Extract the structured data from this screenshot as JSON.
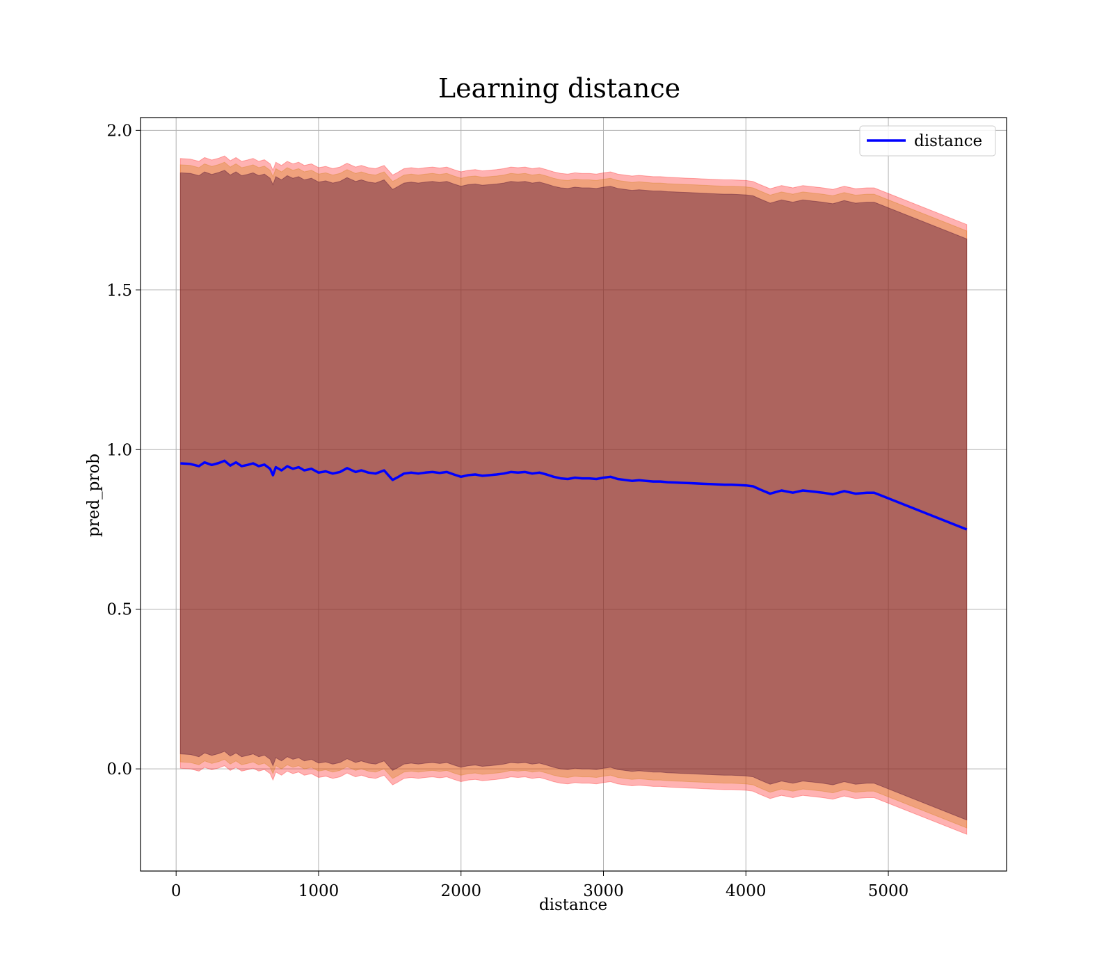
{
  "chart_data": {
    "type": "line",
    "title": "Learning distance",
    "xlabel": "distance",
    "ylabel": "pred_prob",
    "xlim": [
      -250,
      5830
    ],
    "ylim": [
      -0.32,
      2.04
    ],
    "xticks": [
      0,
      1000,
      2000,
      3000,
      4000,
      5000
    ],
    "yticks": [
      0.0,
      0.5,
      1.0,
      1.5,
      2.0
    ],
    "grid": true,
    "legend_position": "top-right",
    "line_color": "#0000ff",
    "series": [
      {
        "name": "distance",
        "x": [
          30,
          100,
          160,
          200,
          250,
          300,
          340,
          380,
          420,
          460,
          500,
          540,
          580,
          620,
          660,
          680,
          700,
          740,
          780,
          820,
          860,
          900,
          950,
          1000,
          1050,
          1100,
          1150,
          1200,
          1220,
          1260,
          1300,
          1350,
          1400,
          1460,
          1500,
          1520,
          1550,
          1600,
          1650,
          1700,
          1750,
          1800,
          1850,
          1900,
          1950,
          2000,
          2050,
          2100,
          2150,
          2200,
          2250,
          2300,
          2350,
          2400,
          2450,
          2500,
          2550,
          2600,
          2650,
          2700,
          2750,
          2800,
          2850,
          2900,
          2950,
          3000,
          3050,
          3100,
          3150,
          3200,
          3250,
          3300,
          3350,
          3400,
          3450,
          3500,
          3550,
          3600,
          3650,
          3700,
          3750,
          3800,
          3850,
          3900,
          3950,
          4000,
          4050,
          4100,
          4170,
          4250,
          4330,
          4400,
          4480,
          4540,
          4610,
          4690,
          4770,
          4850,
          4900,
          5550
        ],
        "y": [
          0.957,
          0.955,
          0.948,
          0.96,
          0.952,
          0.958,
          0.965,
          0.95,
          0.96,
          0.948,
          0.952,
          0.957,
          0.948,
          0.953,
          0.94,
          0.92,
          0.945,
          0.935,
          0.948,
          0.94,
          0.945,
          0.935,
          0.94,
          0.928,
          0.932,
          0.925,
          0.93,
          0.942,
          0.938,
          0.93,
          0.935,
          0.928,
          0.925,
          0.935,
          0.915,
          0.905,
          0.912,
          0.925,
          0.928,
          0.925,
          0.928,
          0.93,
          0.927,
          0.93,
          0.922,
          0.915,
          0.92,
          0.922,
          0.918,
          0.92,
          0.922,
          0.925,
          0.93,
          0.928,
          0.93,
          0.925,
          0.928,
          0.922,
          0.915,
          0.91,
          0.908,
          0.912,
          0.91,
          0.91,
          0.908,
          0.912,
          0.915,
          0.908,
          0.905,
          0.902,
          0.904,
          0.902,
          0.9,
          0.9,
          0.898,
          0.897,
          0.896,
          0.895,
          0.894,
          0.893,
          0.892,
          0.891,
          0.89,
          0.89,
          0.889,
          0.888,
          0.885,
          0.875,
          0.862,
          0.872,
          0.865,
          0.872,
          0.868,
          0.865,
          0.86,
          0.87,
          0.862,
          0.865,
          0.865,
          0.75
        ]
      }
    ],
    "bands": [
      {
        "half_width": 0.955,
        "color": "#ff0000",
        "opacity": 0.3
      },
      {
        "half_width": 0.935,
        "color": "#cc7a00",
        "opacity": 0.3
      },
      {
        "half_width": 0.91,
        "color": "#5a1a3a",
        "opacity": 0.45
      }
    ]
  }
}
